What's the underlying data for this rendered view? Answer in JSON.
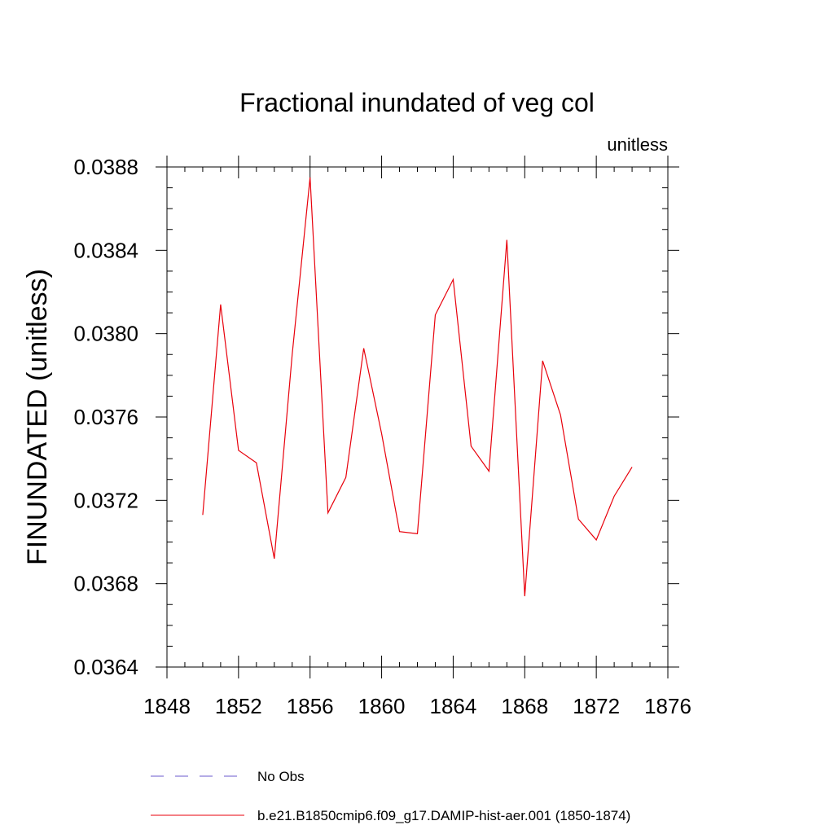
{
  "chart_data": {
    "type": "line",
    "title": "Fractional inundated of veg col",
    "subtitle_right": "unitless",
    "xlabel": "",
    "ylabel": "FINUNDATED  (unitless)",
    "xlim": [
      1848,
      1876
    ],
    "ylim": [
      0.0364,
      0.0388
    ],
    "x_ticks": [
      "1848",
      "1852",
      "1856",
      "1860",
      "1864",
      "1868",
      "1872",
      "1876"
    ],
    "y_ticks": [
      "0.0364",
      "0.0368",
      "0.0372",
      "0.0376",
      "0.0380",
      "0.0384",
      "0.0388"
    ],
    "grid": false,
    "legend_position": "bottom",
    "series": [
      {
        "name": "No Obs",
        "color": "#6a5acd",
        "style": "dashed",
        "x": [],
        "values": []
      },
      {
        "name": "b.e21.B1850cmip6.f09_g17.DAMIP-hist-aer.001 (1850-1874)",
        "color": "#e8000b",
        "style": "solid",
        "x": [
          1850,
          1851,
          1852,
          1853,
          1854,
          1855,
          1856,
          1857,
          1858,
          1859,
          1860,
          1861,
          1862,
          1863,
          1864,
          1865,
          1866,
          1867,
          1868,
          1869,
          1870,
          1871,
          1872,
          1873,
          1874
        ],
        "values": [
          0.03713,
          0.03814,
          0.03744,
          0.03738,
          0.03692,
          0.0379,
          0.03875,
          0.03714,
          0.03731,
          0.03793,
          0.03752,
          0.03705,
          0.03704,
          0.03809,
          0.03826,
          0.03746,
          0.03734,
          0.03845,
          0.03674,
          0.03787,
          0.03761,
          0.03711,
          0.03701,
          0.03722,
          0.03736
        ]
      }
    ]
  }
}
